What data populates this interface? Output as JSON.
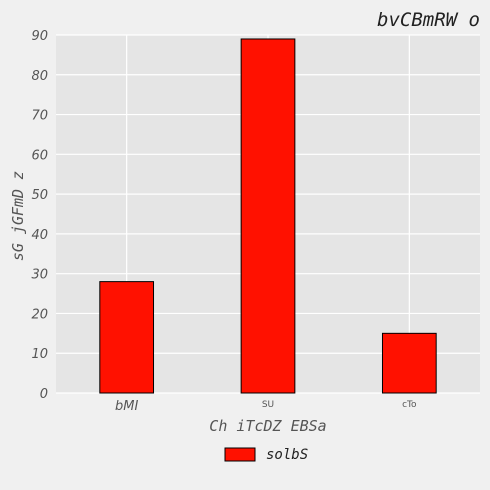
{
  "chart_data": {
    "type": "bar",
    "title": "bvCBmRW o",
    "xlabel": "Ch iTcDZ EBSa",
    "ylabel": "sG jGFmD z",
    "categories": [
      "bMI",
      "SU",
      "cTo"
    ],
    "category_label_sizes": [
      "large",
      "small",
      "small"
    ],
    "series": [
      {
        "name": "solbS",
        "values": [
          28,
          89,
          15
        ],
        "color": "#ff1100"
      }
    ],
    "ylim": [
      0,
      90
    ],
    "yticks": [
      0,
      10,
      20,
      30,
      40,
      50,
      60,
      70,
      80,
      90
    ],
    "grid": true,
    "legend_position": "bottom-center",
    "colors": {
      "plot_background": "#e5e5e5",
      "page_background": "#f0f0f0",
      "grid": "#ffffff",
      "bar_edge": "#000000"
    }
  }
}
